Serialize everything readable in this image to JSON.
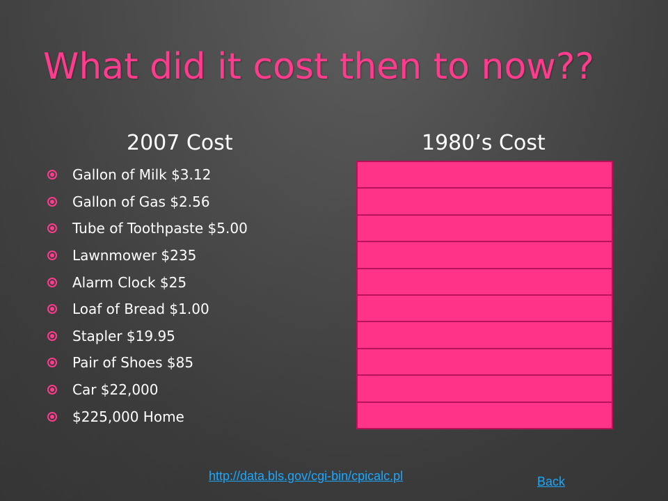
{
  "slide": {
    "title": "What did it cost then to now??",
    "left_heading": "2007 Cost",
    "right_heading": "1980’s Cost",
    "items": [
      "Gallon of Milk  $3.12",
      "Gallon of Gas   $2.56",
      "Tube of Toothpaste   $5.00",
      "Lawnmower    $235",
      "Alarm Clock  $25",
      "Loaf of Bread   $1.00",
      "Stapler  $19.95",
      "Pair of Shoes  $85",
      "Car  $22,000",
      "$225,000 Home"
    ],
    "answer_box_count": 10,
    "source_link": "http://data.bls.gov/cgi-bin/cpicalc.pl",
    "back_link": "Back"
  },
  "colors": {
    "accent": "#ff3b8e",
    "box_fill": "#ff3388",
    "box_border": "#b8125c",
    "link": "#1ba8ff",
    "text": "#ffffff"
  }
}
